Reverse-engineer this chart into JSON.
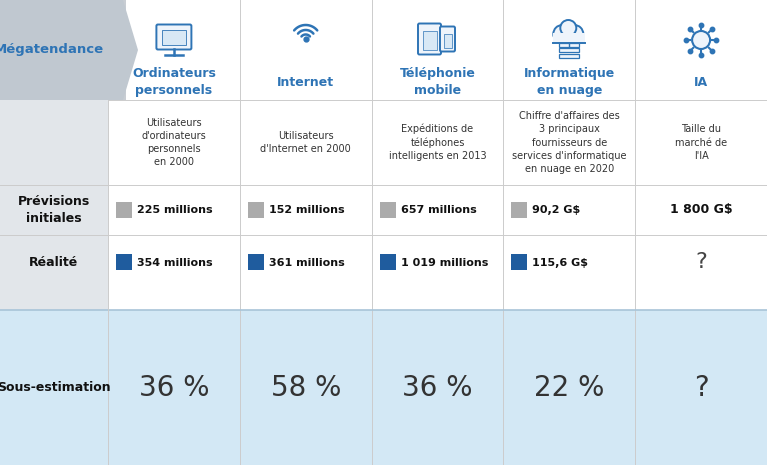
{
  "title_col": "Mégatendance",
  "columns": [
    {
      "header": "Ordinateurs\npersonnels",
      "description": "Utilisateurs\nd'ordinateurs\npersonnels\nen 2000",
      "forecast": "225 millions",
      "reality": "354 millions",
      "underestimate": "36 %"
    },
    {
      "header": "Internet",
      "description": "Utilisateurs\nd'Internet en 2000",
      "forecast": "152 millions",
      "reality": "361 millions",
      "underestimate": "58 %"
    },
    {
      "header": "Téléphonie\nmobile",
      "description": "Expéditions de\ntéléphones\nintelligents en 2013",
      "forecast": "657 millions",
      "reality": "1 019 millions",
      "underestimate": "36 %"
    },
    {
      "header": "Informatique\nen nuage",
      "description": "Chiffre d'affaires des\n3 principaux\nfournisseurs de\nservices d'informatique\nen nuage en 2020",
      "forecast": "90,2 G$",
      "reality": "115,6 G$",
      "underestimate": "22 %"
    },
    {
      "header": "IA",
      "description": "Taille du\nmarché de\nl'IA",
      "forecast": "1 800 G$",
      "reality": "?",
      "underestimate": "?"
    }
  ],
  "header_color": "#2E74B5",
  "blue_color": "#2E74B5",
  "gray_sq_color": "#ABABAB",
  "blue_sq_color": "#1F5C9E",
  "left_header_bg": "#C8D0D8",
  "left_body_bg": "#E0E4E8",
  "bottom_bg": "#D3E8F5",
  "white": "#FFFFFF",
  "col_line": "#CCCCCC",
  "bottom_line": "#AACCDD",
  "underestimate_fontsize": 20,
  "header_fontsize": 9,
  "desc_fontsize": 7,
  "value_fontsize": 8,
  "rowlabel_fontsize": 9
}
